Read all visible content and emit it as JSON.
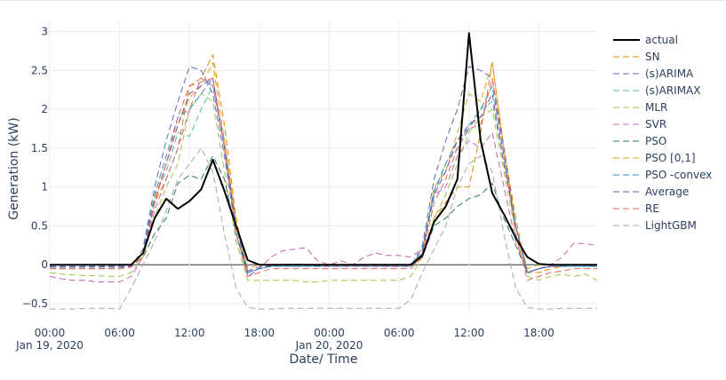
{
  "chart_data": {
    "type": "line",
    "title": "",
    "xlabel": "Date/ Time",
    "ylabel": "Generation (kW)",
    "x_ticks": [
      {
        "t": 0,
        "time": "00:00",
        "date": "Jan 19, 2020"
      },
      {
        "t": 6,
        "time": "06:00",
        "date": ""
      },
      {
        "t": 12,
        "time": "12:00",
        "date": ""
      },
      {
        "t": 18,
        "time": "18:00",
        "date": ""
      },
      {
        "t": 24,
        "time": "00:00",
        "date": "Jan 20, 2020"
      },
      {
        "t": 30,
        "time": "06:00",
        "date": ""
      },
      {
        "t": 36,
        "time": "12:00",
        "date": ""
      },
      {
        "t": 42,
        "time": "18:00",
        "date": ""
      }
    ],
    "y_ticks": [
      -0.5,
      0,
      0.5,
      1,
      1.5,
      2,
      2.5,
      3
    ],
    "y_tick_labels": [
      "−0.5",
      "0",
      "0.5",
      "1",
      "1.5",
      "2",
      "2.5",
      "3"
    ],
    "x_hours": [
      0,
      1,
      2,
      3,
      4,
      5,
      6,
      7,
      8,
      9,
      10,
      11,
      12,
      13,
      14,
      15,
      16,
      17,
      18,
      19,
      20,
      21,
      22,
      23,
      24,
      25,
      26,
      27,
      28,
      29,
      30,
      31,
      32,
      33,
      34,
      35,
      36,
      37,
      38,
      39,
      40,
      41,
      42,
      43,
      44,
      45,
      46,
      47
    ],
    "xlim_hours": [
      0,
      47
    ],
    "ylim": [
      -0.58,
      3.12
    ],
    "grid": true,
    "legend_position": "right",
    "series": [
      {
        "name": "actual",
        "color": "#000000",
        "dash": "solid",
        "values": [
          0,
          0,
          0,
          0,
          0,
          0,
          0,
          0,
          0.15,
          0.6,
          0.85,
          0.72,
          0.82,
          0.97,
          1.35,
          0.95,
          0.5,
          0.06,
          0.0,
          0.0,
          0.0,
          0.0,
          0.0,
          0.0,
          0.0,
          0.0,
          0.0,
          0.0,
          0.0,
          0.0,
          0.0,
          0.0,
          0.12,
          0.55,
          0.75,
          1.1,
          2.98,
          1.6,
          0.92,
          0.65,
          0.35,
          0.1,
          0.01,
          0,
          0,
          0,
          0,
          0
        ]
      },
      {
        "name": "SN",
        "color": "#e58606",
        "dash": "dash",
        "values": [
          -0.02,
          -0.02,
          -0.02,
          -0.02,
          -0.02,
          -0.02,
          -0.02,
          -0.02,
          0.1,
          0.8,
          1.1,
          1.5,
          2.3,
          2.4,
          2.7,
          1.8,
          0.6,
          -0.1,
          -0.05,
          -0.02,
          -0.02,
          -0.02,
          -0.02,
          -0.02,
          -0.02,
          -0.02,
          -0.02,
          -0.02,
          -0.02,
          -0.02,
          -0.02,
          -0.02,
          0.1,
          0.6,
          0.8,
          1.0,
          1.0,
          1.7,
          2.6,
          1.5,
          0.6,
          -0.1,
          -0.1,
          -0.05,
          -0.02,
          -0.02,
          -0.02,
          -0.02
        ]
      },
      {
        "name": "(s)ARIMA",
        "color": "#5d69b1",
        "dash": "dash",
        "values": [
          -0.05,
          -0.05,
          -0.05,
          -0.05,
          -0.05,
          -0.05,
          -0.05,
          -0.02,
          0.2,
          1.0,
          1.6,
          2.1,
          2.55,
          2.5,
          2.2,
          1.4,
          0.4,
          -0.15,
          -0.05,
          -0.02,
          -0.02,
          -0.02,
          -0.02,
          -0.02,
          -0.02,
          -0.02,
          -0.02,
          -0.02,
          -0.02,
          -0.02,
          -0.02,
          -0.02,
          0.25,
          1.1,
          1.6,
          2.0,
          2.55,
          2.5,
          2.4,
          1.5,
          0.5,
          -0.1,
          -0.05,
          -0.02,
          -0.02,
          -0.02,
          -0.02,
          -0.02
        ]
      },
      {
        "name": "(s)ARIMAX",
        "color": "#52bca3",
        "dash": "dash",
        "values": [
          -0.03,
          -0.03,
          -0.03,
          -0.03,
          -0.03,
          -0.03,
          -0.03,
          -0.02,
          0.15,
          0.9,
          1.2,
          1.7,
          1.65,
          2.0,
          2.3,
          1.6,
          0.5,
          -0.1,
          -0.05,
          -0.02,
          -0.02,
          -0.02,
          -0.02,
          -0.02,
          -0.02,
          -0.02,
          -0.02,
          -0.02,
          -0.02,
          -0.02,
          -0.02,
          -0.02,
          0.2,
          0.9,
          1.3,
          1.5,
          1.8,
          2.0,
          2.1,
          1.3,
          0.5,
          -0.1,
          -0.05,
          -0.02,
          -0.02,
          -0.02,
          -0.02,
          -0.02
        ]
      },
      {
        "name": "MLR",
        "color": "#99c945",
        "dash": "dash",
        "values": [
          -0.1,
          -0.12,
          -0.13,
          -0.14,
          -0.14,
          -0.15,
          -0.15,
          -0.1,
          0.1,
          0.6,
          1.0,
          1.3,
          2.0,
          2.2,
          2.1,
          1.2,
          0.3,
          -0.2,
          -0.2,
          -0.2,
          -0.2,
          -0.2,
          -0.22,
          -0.22,
          -0.2,
          -0.2,
          -0.2,
          -0.2,
          -0.2,
          -0.2,
          -0.2,
          -0.15,
          0.1,
          0.6,
          0.9,
          1.3,
          1.7,
          1.9,
          2.0,
          1.2,
          0.4,
          -0.15,
          -0.2,
          -0.15,
          -0.12,
          -0.15,
          -0.12,
          -0.2
        ]
      },
      {
        "name": "SVR",
        "color": "#cc61b0",
        "dash": "dash",
        "values": [
          -0.15,
          -0.18,
          -0.2,
          -0.2,
          -0.22,
          -0.22,
          -0.22,
          -0.15,
          0.1,
          0.7,
          1.1,
          1.5,
          2.0,
          2.4,
          2.3,
          1.5,
          0.4,
          -0.1,
          -0.05,
          0.1,
          0.18,
          0.2,
          0.22,
          0.05,
          0.0,
          0.05,
          0.0,
          0.1,
          0.15,
          0.12,
          0.12,
          0.1,
          0.2,
          0.9,
          1.0,
          1.4,
          1.6,
          1.5,
          1.7,
          1.0,
          0.3,
          -0.1,
          -0.05,
          0.0,
          0.1,
          0.28,
          0.27,
          0.25
        ]
      },
      {
        "name": "PSO",
        "color": "#24796c",
        "dash": "dash",
        "values": [
          -0.02,
          -0.02,
          -0.02,
          -0.02,
          -0.02,
          -0.02,
          -0.02,
          -0.02,
          0.1,
          0.4,
          0.6,
          1.05,
          1.15,
          1.1,
          1.4,
          1.1,
          0.4,
          -0.1,
          -0.05,
          -0.02,
          -0.02,
          -0.02,
          -0.02,
          -0.02,
          -0.02,
          -0.02,
          -0.02,
          -0.02,
          -0.02,
          -0.02,
          -0.02,
          -0.02,
          0.1,
          0.5,
          0.6,
          0.75,
          0.85,
          0.9,
          1.05,
          0.6,
          0.25,
          -0.1,
          -0.05,
          -0.02,
          -0.02,
          -0.02,
          -0.02,
          -0.02
        ]
      },
      {
        "name": "PSO [0,1]",
        "color": "#daa51b",
        "dash": "dash",
        "values": [
          0,
          0,
          0,
          0,
          0,
          0,
          0,
          0,
          0.1,
          0.85,
          1.3,
          1.8,
          2.15,
          2.3,
          2.6,
          1.6,
          0.55,
          -0.05,
          0,
          0,
          0,
          0,
          0,
          0,
          0,
          0,
          0,
          0,
          0,
          0,
          0,
          0,
          0.15,
          1.0,
          1.2,
          1.7,
          2.2,
          2.1,
          2.6,
          1.5,
          0.5,
          -0.05,
          0,
          0,
          0,
          0,
          0,
          0
        ]
      },
      {
        "name": "PSO -convex",
        "color": "#2f8ac4",
        "dash": "dash",
        "values": [
          -0.02,
          -0.02,
          -0.02,
          -0.02,
          -0.02,
          -0.02,
          -0.02,
          -0.02,
          0.15,
          0.9,
          1.4,
          1.9,
          2.0,
          2.2,
          2.4,
          1.5,
          0.5,
          -0.1,
          -0.05,
          -0.02,
          -0.02,
          -0.02,
          -0.02,
          -0.02,
          -0.02,
          -0.02,
          -0.02,
          -0.02,
          -0.02,
          -0.02,
          -0.02,
          -0.02,
          0.2,
          0.95,
          1.3,
          1.6,
          1.75,
          2.0,
          2.3,
          1.4,
          0.5,
          -0.1,
          -0.05,
          -0.02,
          -0.02,
          -0.02,
          -0.02,
          -0.02
        ]
      },
      {
        "name": "Average",
        "color": "#764e9f",
        "dash": "dash",
        "values": [
          -0.03,
          -0.03,
          -0.03,
          -0.03,
          -0.03,
          -0.03,
          -0.03,
          -0.02,
          0.15,
          0.8,
          1.3,
          1.8,
          2.2,
          2.3,
          2.4,
          1.5,
          0.5,
          -0.08,
          -0.03,
          -0.01,
          0.0,
          0.01,
          0.0,
          -0.01,
          -0.02,
          -0.02,
          -0.02,
          -0.02,
          -0.02,
          -0.02,
          -0.02,
          -0.02,
          0.15,
          0.9,
          1.2,
          1.6,
          1.8,
          1.9,
          2.2,
          1.3,
          0.5,
          -0.1,
          -0.05,
          -0.02,
          -0.01,
          0.0,
          0.0,
          -0.02
        ]
      },
      {
        "name": "RE",
        "color": "#ed645a",
        "dash": "dash",
        "values": [
          -0.05,
          -0.05,
          -0.05,
          -0.05,
          -0.05,
          -0.05,
          -0.05,
          -0.03,
          0.1,
          0.8,
          1.3,
          1.9,
          2.3,
          2.35,
          2.4,
          1.5,
          0.4,
          -0.15,
          -0.1,
          -0.05,
          -0.05,
          -0.05,
          -0.05,
          -0.05,
          -0.05,
          -0.05,
          -0.05,
          -0.05,
          -0.05,
          -0.05,
          -0.05,
          -0.05,
          0.1,
          0.8,
          1.1,
          1.5,
          1.75,
          1.8,
          2.4,
          1.4,
          0.4,
          -0.2,
          -0.15,
          -0.1,
          -0.08,
          -0.05,
          -0.05,
          -0.05
        ]
      },
      {
        "name": "LightGBM",
        "color": "#a5aa99",
        "dash": "dash",
        "values": [
          -0.57,
          -0.57,
          -0.57,
          -0.56,
          -0.56,
          -0.56,
          -0.57,
          -0.3,
          0.0,
          0.3,
          0.7,
          1.1,
          1.3,
          1.5,
          1.2,
          0.4,
          -0.3,
          -0.55,
          -0.57,
          -0.57,
          -0.56,
          -0.56,
          -0.56,
          -0.56,
          -0.56,
          -0.56,
          -0.56,
          -0.56,
          -0.56,
          -0.56,
          -0.56,
          -0.45,
          -0.1,
          0.2,
          0.5,
          1.0,
          1.3,
          1.4,
          1.2,
          0.4,
          -0.3,
          -0.55,
          -0.57,
          -0.57,
          -0.56,
          -0.56,
          -0.56,
          -0.56
        ]
      }
    ]
  }
}
